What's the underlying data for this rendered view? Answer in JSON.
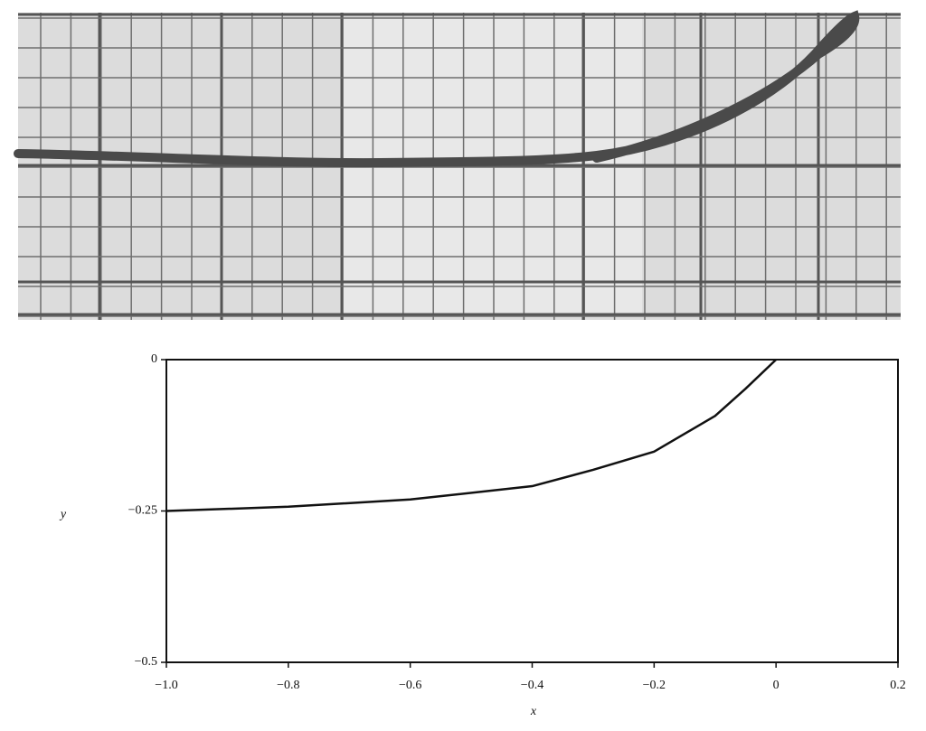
{
  "chart_data": {
    "type": "line",
    "x": [
      -1.0,
      -0.8,
      -0.6,
      -0.4,
      -0.3,
      -0.2,
      -0.1,
      -0.05,
      0
    ],
    "values": [
      -0.25,
      -0.243,
      -0.231,
      -0.209,
      -0.182,
      -0.152,
      -0.093,
      -0.048,
      0
    ],
    "color": "#111111",
    "xlabel": "x",
    "ylabel": "y",
    "xlim": [
      -1.0,
      0.2
    ],
    "xticks": [
      {
        "value": -1.0,
        "label": "−1.0"
      },
      {
        "value": -0.8,
        "label": "−0.8"
      },
      {
        "value": -0.6,
        "label": "−0.6"
      },
      {
        "value": -0.4,
        "label": "−0.4"
      },
      {
        "value": -0.2,
        "label": "−0.2"
      },
      0,
      0.2
    ],
    "ylim": [
      -0.5,
      0
    ],
    "yticks": [
      0,
      {
        "value": -0.25,
        "label": "−0.25"
      },
      {
        "value": -0.5,
        "label": "−0.5"
      }
    ]
  }
}
